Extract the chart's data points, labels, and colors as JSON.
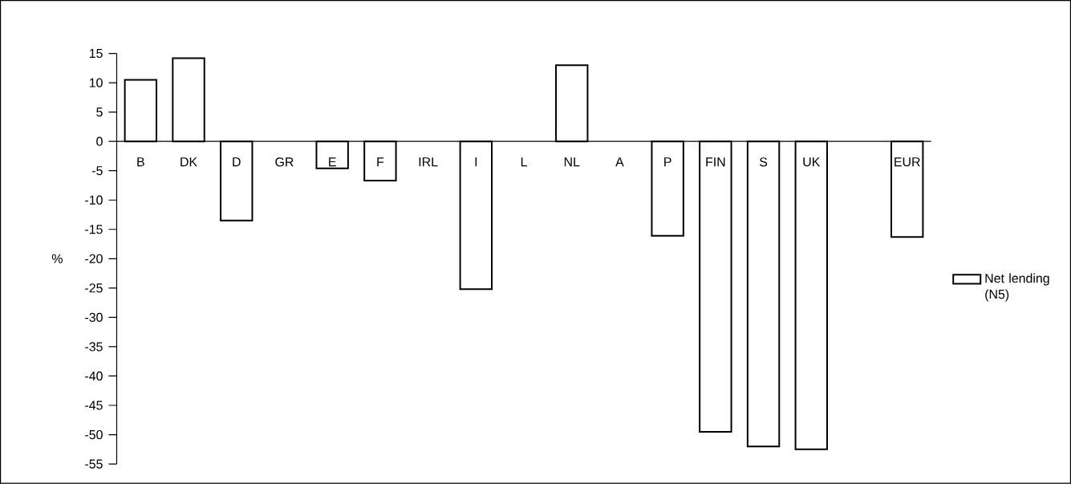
{
  "chart_data": {
    "type": "bar",
    "ylabel": "%",
    "categories": [
      "B",
      "DK",
      "D",
      "GR",
      "E",
      "F",
      "IRL",
      "I",
      "L",
      "NL",
      "A",
      "P",
      "FIN",
      "S",
      "UK",
      null,
      "EUR"
    ],
    "series": [
      {
        "name": "Net lending (N5)",
        "color": "#ffffff",
        "values": [
          10.5,
          14.2,
          -13.5,
          null,
          -4.6,
          -6.7,
          null,
          -25.2,
          null,
          13.0,
          null,
          -16.1,
          -49.5,
          -52.0,
          -52.5,
          null,
          -16.3
        ]
      }
    ],
    "ylim": [
      -55,
      15
    ],
    "yticks": [
      -55,
      -50,
      -45,
      -40,
      -35,
      -30,
      -25,
      -20,
      -15,
      -10,
      -5,
      0,
      5,
      10,
      15
    ],
    "legend": "right",
    "grid": false
  }
}
